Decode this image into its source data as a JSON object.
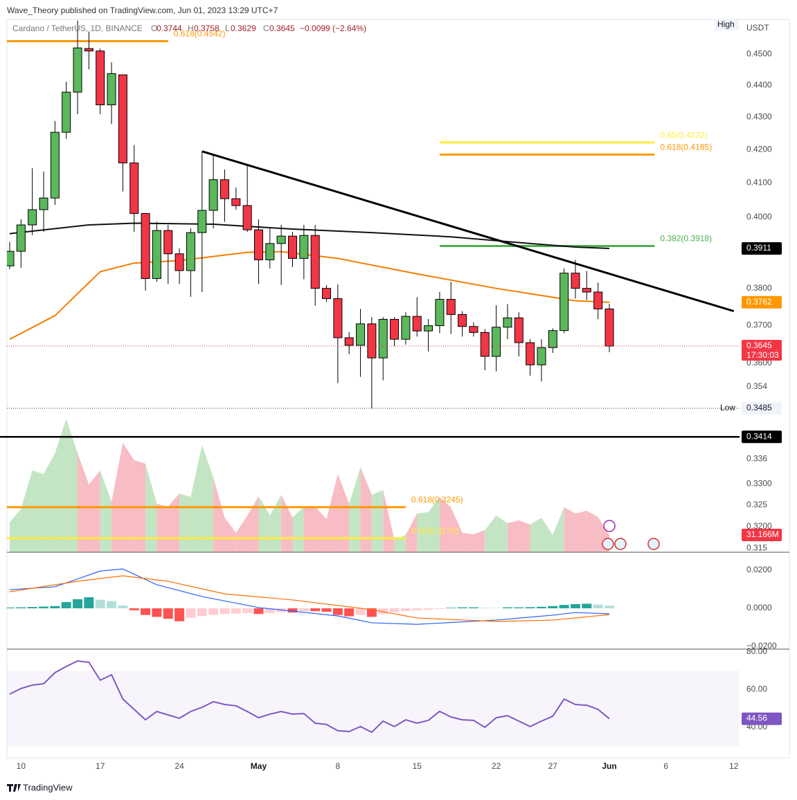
{
  "header": {
    "publisher": "Wave_Theory published on TradingView.com, Jun 01, 2023 13:29 UTC+7",
    "symbol": "Cardano / TetherUS, 1D, BINANCE",
    "letters": [
      "O",
      "H",
      "L",
      "C"
    ],
    "change": "−0.0099 (−2.64%)"
  },
  "footer": "TradingView",
  "chart_data": {
    "type": "candlestick",
    "up_color": "#5cb85c",
    "down_color": "#f23645",
    "x": [
      "Apr 9",
      "Apr 10",
      "Apr 11",
      "Apr 12",
      "Apr 13",
      "Apr 14",
      "Apr 15",
      "Apr 16",
      "Apr 17",
      "Apr 18",
      "Apr 19",
      "Apr 20",
      "Apr 21",
      "Apr 22",
      "Apr 23",
      "Apr 24",
      "Apr 25",
      "Apr 26",
      "Apr 27",
      "Apr 28",
      "Apr 29",
      "Apr 30",
      "May 1",
      "May 2",
      "May 3",
      "May 4",
      "May 5",
      "May 6",
      "May 7",
      "May 8",
      "May 9",
      "May 10",
      "May 11",
      "May 12",
      "May 13",
      "May 14",
      "May 15",
      "May 16",
      "May 17",
      "May 18",
      "May 19",
      "May 20",
      "May 21",
      "May 22",
      "May 23",
      "May 24",
      "May 25",
      "May 26",
      "May 27",
      "May 28",
      "May 29",
      "May 30",
      "May 31",
      "Jun 1"
    ],
    "open": [
      0.3862,
      0.3903,
      0.3978,
      0.4022,
      0.4056,
      0.4253,
      0.4378,
      0.4518,
      0.451,
      0.4338,
      0.4433,
      0.416,
      0.4011,
      0.3827,
      0.3962,
      0.3896,
      0.3849,
      0.3956,
      0.402,
      0.411,
      0.4054,
      0.4034,
      0.3964,
      0.3879,
      0.3925,
      0.3946,
      0.3883,
      0.3948,
      0.38,
      0.3772,
      0.3667,
      0.3647,
      0.3704,
      0.3614,
      0.3716,
      0.3663,
      0.3724,
      0.3685,
      0.3699,
      0.377,
      0.3729,
      0.3697,
      0.3681,
      0.3618,
      0.3695,
      0.372,
      0.3654,
      0.3596,
      0.3641,
      0.3686,
      0.3842,
      0.38,
      0.379,
      0.3744
    ],
    "high": [
      0.393,
      0.3994,
      0.4144,
      0.4134,
      0.4288,
      0.4411,
      0.461,
      0.4574,
      0.4518,
      0.4473,
      0.4433,
      0.4214,
      0.4011,
      0.3987,
      0.3978,
      0.3911,
      0.3968,
      0.4195,
      0.4185,
      0.414,
      0.4087,
      0.4154,
      0.3994,
      0.3968,
      0.3978,
      0.3958,
      0.3978,
      0.3978,
      0.3809,
      0.3811,
      0.3682,
      0.3744,
      0.3722,
      0.3722,
      0.3722,
      0.3735,
      0.3776,
      0.3717,
      0.379,
      0.3818,
      0.3738,
      0.3708,
      0.369,
      0.3754,
      0.3757,
      0.3735,
      0.3663,
      0.3663,
      0.3692,
      0.3855,
      0.3879,
      0.3848,
      0.3816,
      0.3758
    ],
    "low": [
      0.3853,
      0.3857,
      0.3949,
      0.3958,
      0.4036,
      0.4233,
      0.4309,
      0.4451,
      0.4309,
      0.4278,
      0.4075,
      0.3958,
      0.3794,
      0.3818,
      0.3812,
      0.3812,
      0.3777,
      0.379,
      0.3968,
      0.3987,
      0.4022,
      0.3958,
      0.3812,
      0.3855,
      0.3809,
      0.3859,
      0.3825,
      0.3753,
      0.3763,
      0.3549,
      0.3624,
      0.3565,
      0.3485,
      0.3556,
      0.3645,
      0.3649,
      0.367,
      0.3631,
      0.3679,
      0.3677,
      0.367,
      0.367,
      0.3582,
      0.3579,
      0.3663,
      0.3618,
      0.3568,
      0.3553,
      0.3627,
      0.3679,
      0.3772,
      0.3768,
      0.3716,
      0.3629
    ],
    "close": [
      0.3903,
      0.3978,
      0.4022,
      0.4056,
      0.4253,
      0.4378,
      0.452,
      0.451,
      0.4338,
      0.4437,
      0.416,
      0.4011,
      0.3827,
      0.3962,
      0.3896,
      0.3849,
      0.3956,
      0.402,
      0.411,
      0.4054,
      0.4034,
      0.3964,
      0.3879,
      0.3925,
      0.3946,
      0.3883,
      0.3948,
      0.38,
      0.3772,
      0.3667,
      0.3647,
      0.3704,
      0.3614,
      0.3716,
      0.3663,
      0.3724,
      0.3685,
      0.3699,
      0.377,
      0.3729,
      0.3697,
      0.3681,
      0.3618,
      0.3695,
      0.372,
      0.3654,
      0.3596,
      0.3641,
      0.3686,
      0.3842,
      0.38,
      0.379,
      0.3744,
      0.3645
    ],
    "log_scale": true,
    "ylim": [
      0.3138,
      0.4614
    ],
    "y_unit": "USDT",
    "yticks": [
      {
        "value": 0.45,
        "label": "0.4500"
      },
      {
        "value": 0.44,
        "label": "0.4400"
      },
      {
        "value": 0.43,
        "label": "0.4300"
      },
      {
        "value": 0.42,
        "label": "0.4200"
      },
      {
        "value": 0.41,
        "label": "0.4100"
      },
      {
        "value": 0.4,
        "label": "0.4000"
      },
      {
        "value": 0.38,
        "label": "0.3800"
      },
      {
        "value": 0.37,
        "label": "0.3700"
      },
      {
        "value": 0.36,
        "label": "0.3600"
      },
      0.354,
      0.336,
      {
        "value": 0.33,
        "label": "0.3300"
      },
      0.325,
      {
        "value": 0.32,
        "label": "0.3200"
      },
      0.315
    ],
    "xlim": [
      "Apr 8",
      "Jun 13"
    ],
    "xticks": [
      {
        "value": "Apr 10",
        "label": "10"
      },
      {
        "value": "Apr 17",
        "label": "17"
      },
      {
        "value": "Apr 24",
        "label": "24"
      },
      {
        "value": "May 1",
        "label": "May"
      },
      {
        "value": "May 8",
        "label": "8"
      },
      {
        "value": "May 15",
        "label": "15"
      },
      {
        "value": "May 22",
        "label": "22"
      },
      {
        "value": "May 27",
        "label": "27"
      },
      {
        "value": "Jun 1",
        "label": "Jun"
      },
      {
        "value": "Jun 6",
        "label": "6"
      },
      {
        "value": "Jun 12",
        "label": "12"
      }
    ],
    "grid": false,
    "high_label": "High",
    "low_label": "Low",
    "countdown": "17:30:03",
    "overlays": [
      {
        "color": "#111111",
        "x": [
          "Apr 9",
          "Apr 16",
          "Apr 20",
          "Apr 27",
          "May 4",
          "May 11",
          "May 18",
          "May 25",
          "May 29",
          "Jun 1"
        ],
        "values": [
          0.3953,
          0.3978,
          0.3983,
          0.398,
          0.3966,
          0.3956,
          0.3944,
          0.3925,
          0.3915,
          0.3911
        ]
      },
      {
        "color": "#f57c00",
        "x": [
          "Apr 9",
          "Apr 13",
          "Apr 17",
          "Apr 20",
          "Apr 24",
          "Apr 30",
          "May 3",
          "May 8",
          "May 15",
          "May 22",
          "May 29",
          "Jun 1"
        ],
        "values": [
          0.3663,
          0.3726,
          0.3846,
          0.387,
          0.3877,
          0.39,
          0.3902,
          0.3883,
          0.384,
          0.38,
          0.3766,
          0.3762
        ]
      }
    ],
    "trendline": {
      "color": "#000000",
      "x": [
        "Apr 26",
        "Jun 12"
      ],
      "values": [
        0.4195,
        0.3738
      ]
    },
    "levels": [
      {
        "label": "0.618(0.4542)",
        "value": 0.4542,
        "color": "#ff9800",
        "x": [
          "Apr 8",
          "Apr 23"
        ]
      },
      {
        "label": "0.65(0.4222)",
        "value": 0.4222,
        "color": "#ffeb3b",
        "x": [
          "May 17",
          "Jun 5"
        ]
      },
      {
        "label": "0.618(0.4185)",
        "value": 0.4185,
        "color": "#ff9800",
        "x": [
          "May 17",
          "Jun 5"
        ]
      },
      {
        "label": "0.382(0.3918)",
        "value": 0.3918,
        "color": "#4caf50",
        "x": [
          "May 17",
          "Jun 5"
        ]
      },
      {
        "value": 0.3414,
        "color": "#000000",
        "x": [
          "Apr 8",
          "Jun 13"
        ]
      },
      {
        "label": "0.618(0.3245)",
        "value": 0.3245,
        "color": "#ff9800",
        "x": [
          "Apr 8",
          "May 14"
        ]
      },
      {
        "label": "0.65(0.3173)",
        "value": 0.3173,
        "color": "#ffeb3b",
        "x": [
          "Apr 8",
          "May 14"
        ]
      }
    ],
    "volume": {
      "up_color": "#c3e5c4",
      "down_color": "#f8bcc4",
      "ylim": [
        0,
        960
      ],
      "values": [
        53.6,
        78.5,
        147.1,
        140.9,
        178.3,
        240.6,
        178.3,
        122.2,
        147.1,
        91.0,
        197.0,
        165.8,
        159.6,
        87.3,
        82.3,
        106.0,
        99.7,
        193.2,
        134.6,
        62.3,
        34.9,
        66.1,
        101.0,
        66.1,
        103.5,
        62.3,
        82.3,
        82.3,
        59.8,
        140.9,
        87.3,
        153.3,
        103.5,
        112.2,
        22.4,
        31.2,
        69.8,
        72.3,
        99.7,
        81.0,
        34.9,
        32.4,
        39.9,
        66.1,
        52.4,
        57.3,
        49.9,
        62.3,
        31.2,
        81.0,
        69.8,
        74.8,
        63.6,
        31.166
      ],
      "value_labels": [
        null,
        null,
        null,
        null,
        null,
        null,
        null,
        null,
        null,
        null,
        null,
        null,
        null,
        null,
        null,
        null,
        null,
        null,
        null,
        null,
        null,
        null,
        null,
        null,
        null,
        null,
        null,
        null,
        null,
        null,
        null,
        null,
        null,
        null,
        null,
        null,
        null,
        null,
        null,
        null,
        null,
        null,
        null,
        null,
        null,
        null,
        null,
        null,
        null,
        null,
        null,
        null,
        null,
        "31.166M"
      ]
    },
    "macd": {
      "ylim": [
        -0.02145,
        0.0291
      ],
      "yticks": [
        {
          "value": 0.02,
          "label": "0.0200"
        },
        {
          "value": 0,
          "label": "0.0000"
        },
        {
          "value": -0.02,
          "label": "−0.0200"
        }
      ],
      "hist_colors": {
        "up_rising": "#26a69a",
        "up_falling": "#b2dfdb",
        "down_falling": "#ff5252",
        "down_rising": "#ffcdd2"
      },
      "histogram": [
        0.0004,
        0.0005,
        0.0007,
        0.0009,
        0.0012,
        0.0033,
        0.0048,
        0.0058,
        0.0045,
        0.0038,
        0.0015,
        -0.001,
        -0.0035,
        -0.0045,
        -0.0055,
        -0.0068,
        -0.005,
        -0.004,
        -0.0035,
        -0.003,
        -0.0028,
        -0.0025,
        -0.003,
        -0.0025,
        -0.002,
        -0.0022,
        -0.0015,
        -0.0015,
        -0.0018,
        -0.0035,
        -0.0042,
        -0.0035,
        -0.0045,
        -0.003,
        -0.002,
        -0.0015,
        -0.0012,
        -0.0008,
        -0.0004,
        0.0003,
        0.0005,
        0.0005,
        0.0003,
        0.0002,
        0.0005,
        0.0005,
        0.0006,
        0.0008,
        0.0012,
        0.0018,
        0.0022,
        0.0024,
        0.002,
        0.0014
      ],
      "series": [
        {
          "color": "#2962ff",
          "x": [
            "Apr 9",
            "Apr 13",
            "Apr 17",
            "Apr 19",
            "Apr 22",
            "Apr 26",
            "May 1",
            "May 8",
            "May 11",
            "May 15",
            "May 22",
            "May 27",
            "May 29",
            "Jun 1"
          ],
          "values": [
            0.0098,
            0.0113,
            0.0196,
            0.0207,
            0.0124,
            0.0062,
            0.0004,
            -0.004,
            -0.0076,
            -0.0084,
            -0.0062,
            -0.0036,
            -0.0022,
            -0.0029
          ]
        },
        {
          "color": "#ff6d00",
          "x": [
            "Apr 9",
            "Apr 15",
            "Apr 19",
            "Apr 23",
            "Apr 28",
            "May 4",
            "May 11",
            "May 15",
            "May 22",
            "May 27",
            "Jun 1"
          ],
          "values": [
            0.0087,
            0.0142,
            0.0171,
            0.0142,
            0.0076,
            0.0044,
            -0.0007,
            -0.0051,
            -0.0069,
            -0.0062,
            -0.0033
          ]
        }
      ]
    },
    "rsi": {
      "ylim": [
        23.85,
        81.47
      ],
      "yticks": [
        {
          "value": 80,
          "label": "80.00"
        },
        {
          "value": 60,
          "label": "60.00"
        },
        {
          "value": 40,
          "label": "40.00"
        }
      ],
      "band": [
        30,
        70
      ],
      "band_color": "#7e57c2",
      "color": "#7e57c2",
      "values": [
        57.6,
        60.6,
        62.4,
        63.1,
        69.0,
        72.3,
        75.2,
        74.5,
        65.0,
        67.9,
        55.0,
        49.5,
        44.0,
        48.4,
        46.6,
        44.8,
        48.4,
        50.6,
        53.6,
        52.1,
        51.4,
        48.4,
        45.1,
        47.0,
        48.4,
        47.0,
        47.3,
        42.2,
        41.5,
        38.2,
        37.8,
        40.4,
        37.4,
        43.3,
        40.4,
        44.0,
        42.2,
        43.7,
        48.5,
        45.5,
        44.0,
        43.7,
        40.0,
        45.1,
        46.2,
        43.3,
        40.4,
        43.3,
        45.9,
        55.0,
        52.1,
        51.7,
        49.5,
        44.56
      ]
    }
  }
}
